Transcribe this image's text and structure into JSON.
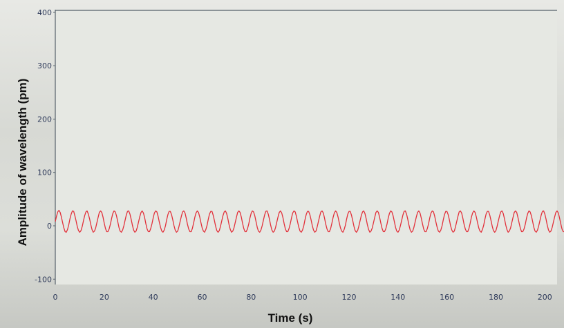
{
  "chart_data": {
    "type": "line",
    "title": "",
    "xlabel": "Time (s)",
    "ylabel": "Amplitude of wavelength  (pm)",
    "xlim": [
      0,
      205
    ],
    "ylim": [
      -110,
      405
    ],
    "x_ticks": [
      "0",
      "20",
      "40",
      "60",
      "80",
      "100",
      "120",
      "140",
      "160",
      "180",
      "200"
    ],
    "y_ticks": [
      "400",
      "300",
      "200",
      "100",
      "0",
      "-100"
    ],
    "grid": false,
    "legend": "none",
    "series": [
      {
        "color": "#e2303a",
        "sampling_interval_s": 0.5,
        "values": [
          8,
          18,
          26,
          29,
          25,
          16,
          6,
          -4,
          -11,
          -12,
          -7,
          2,
          13,
          22,
          28,
          27,
          19,
          9,
          -2,
          -9,
          -12,
          -9,
          -1,
          9,
          19,
          26,
          28,
          22,
          13,
          2,
          -7,
          -12,
          -10,
          -4,
          6,
          16,
          25,
          28,
          25,
          16,
          5,
          -5,
          -11,
          -11,
          -6,
          3,
          14,
          23,
          28,
          26,
          19,
          8,
          -3,
          -10,
          -12,
          -8,
          0,
          10,
          20,
          27,
          28,
          22,
          12,
          1,
          -8,
          -12,
          -10,
          -3,
          7,
          17,
          25,
          28,
          24,
          15,
          4,
          -6,
          -11,
          -11,
          -5,
          4,
          15,
          24,
          28,
          26,
          18,
          7,
          -3,
          -10,
          -12,
          -8,
          0,
          11,
          21,
          27,
          27,
          21,
          11,
          0,
          -8,
          -12,
          -10,
          -2,
          8,
          18,
          26,
          28,
          24,
          14,
          3,
          -6,
          -11,
          -11,
          -5,
          5,
          16,
          24,
          28,
          25,
          17,
          6,
          -4,
          -10,
          -12,
          -7,
          1,
          12,
          22,
          27,
          27,
          20,
          10,
          -1,
          -9,
          -12,
          -9,
          -1,
          9,
          19,
          26,
          28,
          23,
          13,
          2,
          -7,
          -12,
          -10,
          -4,
          6,
          16,
          25,
          28,
          25,
          16,
          5,
          -5,
          -11,
          -11,
          -6,
          3,
          14,
          23,
          28,
          26,
          19,
          8,
          -3,
          -10,
          -12,
          -8,
          0,
          10,
          20,
          27,
          28,
          22,
          12,
          1,
          -8,
          -12,
          -10,
          -3,
          7,
          17,
          25,
          28,
          24,
          15,
          4,
          -6,
          -11,
          -11,
          -5,
          4,
          15,
          24,
          28,
          26,
          18,
          7,
          -3,
          -10,
          -12,
          -8,
          0,
          11,
          21,
          27,
          27,
          21,
          11,
          0,
          -8,
          -12,
          -10,
          -2,
          8,
          18,
          26,
          28,
          24,
          14,
          3,
          -6,
          -11,
          -11,
          -5,
          5,
          16,
          24,
          28,
          25,
          17,
          6,
          -4,
          -10,
          -12,
          -7,
          1,
          12,
          22,
          27,
          27,
          20,
          10,
          -1,
          -9,
          -12,
          -9,
          -1,
          9,
          19,
          26,
          28,
          23,
          13,
          2,
          -7,
          -12,
          -10,
          -4,
          6,
          16,
          25,
          28,
          25,
          16,
          5,
          -5,
          -11,
          -11,
          -6,
          3,
          14,
          23,
          28,
          26,
          19,
          8,
          -3,
          -10,
          -12,
          -8,
          0,
          10,
          20,
          27,
          28,
          22,
          12,
          1,
          -8,
          -12,
          -10,
          -3,
          7,
          17,
          25,
          28,
          24,
          15,
          4,
          -6,
          -11,
          -11,
          -5,
          4,
          15,
          24,
          28,
          26,
          18,
          7,
          -3,
          -10,
          -12,
          -8,
          0,
          11,
          21,
          27,
          27,
          21,
          11,
          0,
          -8,
          -12,
          -10,
          -2,
          8,
          18,
          26,
          28,
          24,
          14,
          3,
          -6,
          -11,
          -11,
          -5,
          5,
          16,
          24,
          28,
          25,
          17,
          6,
          -4,
          -10,
          -12,
          -7,
          1,
          12,
          22,
          27,
          27,
          20,
          10,
          -1,
          -9,
          -12,
          -9,
          -1,
          9,
          19,
          26,
          28,
          23,
          13,
          2,
          -7,
          -12,
          -10,
          -4,
          6,
          16,
          25,
          28,
          25,
          16,
          5,
          -5,
          -11,
          -11,
          -6,
          3,
          14,
          23,
          28,
          26,
          19,
          8,
          -3,
          -10,
          -12,
          -8,
          0,
          10,
          20,
          27,
          28,
          22,
          12,
          1,
          -8,
          -12,
          -10,
          -3,
          7,
          17,
          25,
          28,
          24,
          15,
          4,
          -6,
          -11,
          -11,
          -5,
          4,
          15,
          24,
          28,
          26,
          18,
          7,
          -3,
          -10,
          -12,
          -8,
          0,
          11,
          21,
          27
        ]
      }
    ]
  }
}
